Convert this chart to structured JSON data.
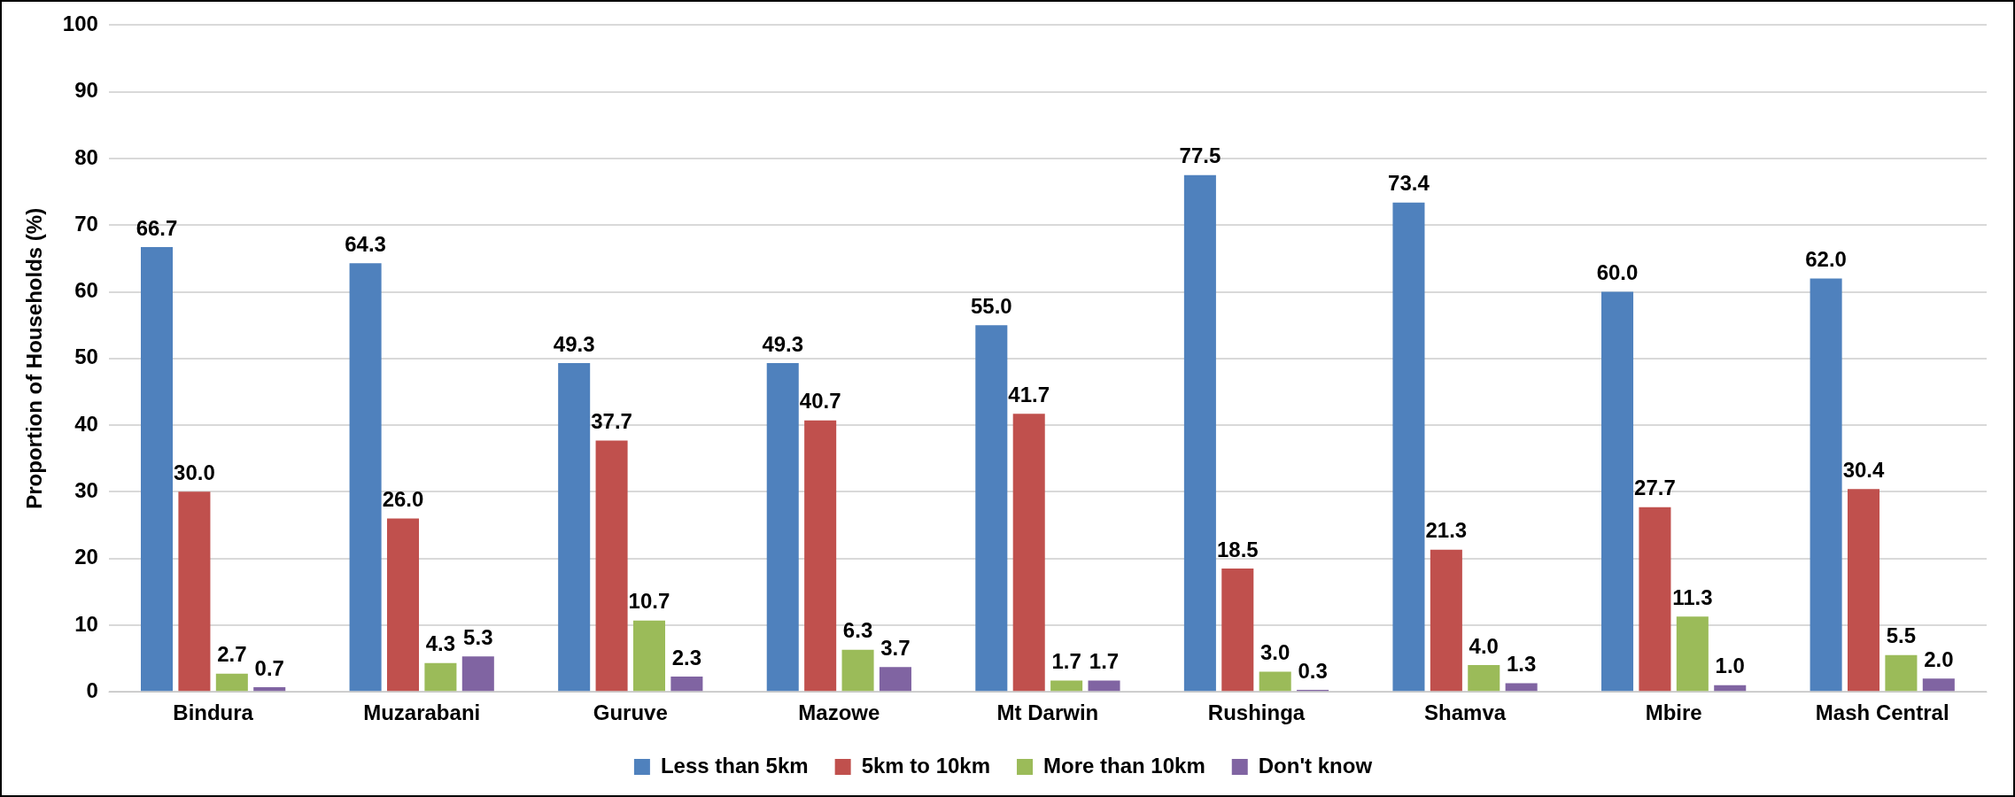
{
  "chart_data": {
    "type": "bar",
    "ylabel": "Proportion of Households (%)",
    "categories": [
      "Bindura",
      "Muzarabani",
      "Guruve",
      "Mazowe",
      "Mt Darwin",
      "Rushinga",
      "Shamva",
      "Mbire",
      "Mash Central"
    ],
    "series": [
      {
        "name": "Less than 5km",
        "color": "#4f81bd",
        "values": [
          66.7,
          64.3,
          49.3,
          49.3,
          55.0,
          77.5,
          73.4,
          60.0,
          62.0
        ],
        "value_labels": [
          "66.7",
          "64.3",
          "49.3",
          "49.3",
          "55.0",
          "77.5",
          "73.4",
          "60.0",
          "62.0"
        ]
      },
      {
        "name": "5km to 10km",
        "color": "#c0504d",
        "values": [
          30.0,
          26.0,
          37.7,
          40.7,
          41.7,
          18.5,
          21.3,
          27.7,
          30.4
        ],
        "value_labels": [
          "30.0",
          "26.0",
          "37.7",
          "40.7",
          "41.7",
          "18.5",
          "21.3",
          "27.7",
          "30.4"
        ]
      },
      {
        "name": "More than 10km",
        "color": "#9bbb59",
        "values": [
          2.7,
          4.3,
          10.7,
          6.3,
          1.7,
          3.0,
          4.0,
          11.3,
          5.5
        ],
        "value_labels": [
          "2.7",
          "4.3",
          "10.7",
          "6.3",
          "1.7",
          "3.0",
          "4.0",
          "11.3",
          "5.5"
        ]
      },
      {
        "name": "Don't know",
        "color": "#8064a2",
        "values": [
          0.7,
          5.3,
          2.3,
          3.7,
          1.7,
          0.3,
          1.3,
          1.0,
          2.0
        ],
        "value_labels": [
          "0.7",
          "5.3",
          "2.3",
          "3.7",
          "1.7",
          "0.3",
          "1.3",
          "1.0",
          "2.0"
        ]
      }
    ],
    "ylim": [
      0,
      100
    ],
    "yticks": [
      0,
      10,
      20,
      30,
      40,
      50,
      60,
      70,
      80,
      90,
      100
    ],
    "grid": "y",
    "legend": "bottom"
  }
}
